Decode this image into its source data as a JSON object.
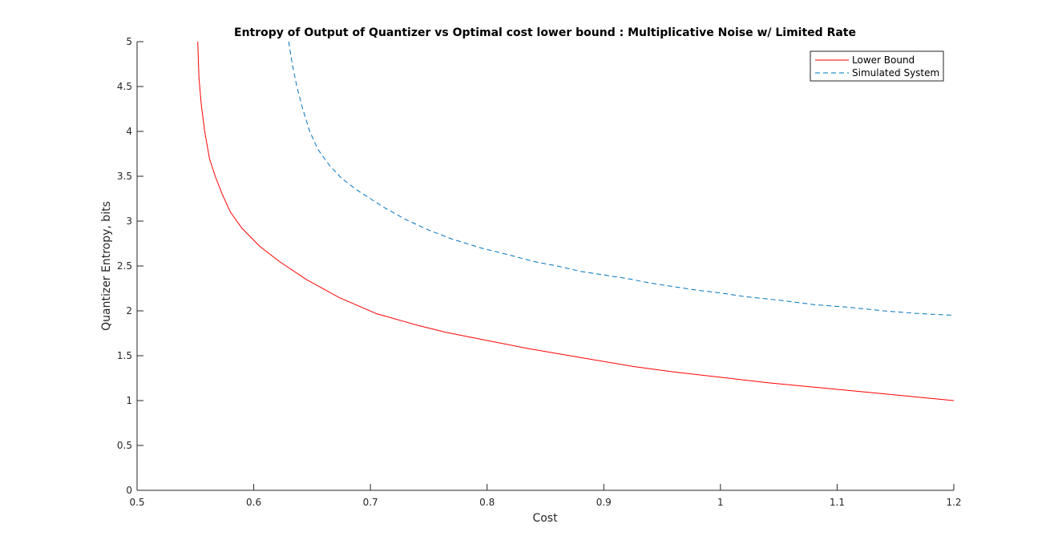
{
  "chart_data": {
    "type": "line",
    "title": "Entropy of Output of Quantizer vs Optimal cost lower bound : Multiplicative Noise w/ Limited Rate",
    "xlabel": "Cost",
    "ylabel": "Quantizer Entropy, bits",
    "xlim": [
      0.5,
      1.2
    ],
    "ylim": [
      0,
      5
    ],
    "xticks": [
      "0.5",
      "0.6",
      "0.7",
      "0.8",
      "0.9",
      "1",
      "1.1",
      "1.2"
    ],
    "yticks": [
      "0",
      "0.5",
      "1",
      "1.5",
      "2",
      "2.5",
      "3",
      "3.5",
      "4",
      "4.5",
      "5"
    ],
    "grid": false,
    "legend_position": "top-right",
    "series": [
      {
        "name": "Lower Bound",
        "color": "#ff0000",
        "style": "solid",
        "x": [
          0.552,
          0.553,
          0.555,
          0.558,
          0.562,
          0.567,
          0.573,
          0.58,
          0.59,
          0.605,
          0.622,
          0.645,
          0.673,
          0.705,
          0.74,
          0.765,
          0.8,
          0.835,
          0.88,
          0.925,
          0.96,
          1.0,
          1.04,
          1.08,
          1.12,
          1.16,
          1.2
        ],
        "y": [
          5.0,
          4.6,
          4.3,
          4.0,
          3.7,
          3.5,
          3.3,
          3.1,
          2.92,
          2.72,
          2.55,
          2.35,
          2.15,
          1.97,
          1.84,
          1.76,
          1.67,
          1.58,
          1.48,
          1.38,
          1.32,
          1.26,
          1.2,
          1.15,
          1.1,
          1.05,
          1.0
        ]
      },
      {
        "name": "Simulated System",
        "color": "#0072bd",
        "style": "dashed",
        "x": [
          0.63,
          0.633,
          0.637,
          0.642,
          0.648,
          0.655,
          0.665,
          0.675,
          0.688,
          0.7,
          0.712,
          0.73,
          0.75,
          0.77,
          0.795,
          0.82,
          0.84,
          0.86,
          0.88,
          0.9,
          0.92,
          0.94,
          0.96,
          0.98,
          1.0,
          1.02,
          1.05,
          1.08,
          1.11,
          1.14,
          1.17,
          1.2
        ],
        "y": [
          5.0,
          4.75,
          4.5,
          4.25,
          4.0,
          3.8,
          3.62,
          3.48,
          3.35,
          3.25,
          3.15,
          3.02,
          2.9,
          2.8,
          2.7,
          2.62,
          2.55,
          2.5,
          2.44,
          2.4,
          2.36,
          2.31,
          2.27,
          2.23,
          2.2,
          2.16,
          2.12,
          2.07,
          2.04,
          2.0,
          1.97,
          1.95
        ]
      }
    ]
  }
}
